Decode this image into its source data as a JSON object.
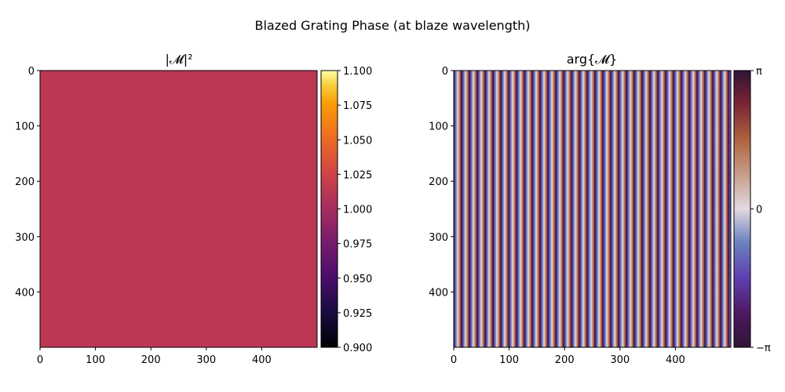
{
  "figure": {
    "suptitle": "Blazed Grating Phase (at blaze wavelength)"
  },
  "chart_data": [
    {
      "type": "heatmap",
      "title": "|𝓜|²",
      "xlabel": "",
      "ylabel": "",
      "x_ticks": [
        "0",
        "100",
        "200",
        "300",
        "400"
      ],
      "y_ticks": [
        "0",
        "100",
        "200",
        "300",
        "400"
      ],
      "xlim": [
        0,
        500
      ],
      "ylim": [
        500,
        0
      ],
      "grid": false,
      "constant_value": 1.0,
      "colormap": "inferno",
      "fill_color": "#bc3754",
      "colorbar": {
        "range": [
          0.9,
          1.1
        ],
        "ticks": [
          "1.100",
          "1.075",
          "1.050",
          "1.025",
          "1.000",
          "0.975",
          "0.950",
          "0.925",
          "0.900"
        ],
        "tick_values": [
          1.1,
          1.075,
          1.05,
          1.025,
          1.0,
          0.975,
          0.95,
          0.925,
          0.9
        ]
      }
    },
    {
      "type": "heatmap",
      "title": "arg{𝓜}",
      "xlabel": "",
      "ylabel": "",
      "x_ticks": [
        "0",
        "100",
        "200",
        "300",
        "400"
      ],
      "y_ticks": [
        "0",
        "100",
        "200",
        "300",
        "400"
      ],
      "xlim": [
        0,
        500
      ],
      "ylim": [
        500,
        0
      ],
      "grid": false,
      "pattern": "vertical stripes (phase ramp wrapping from −π to π)",
      "stripe_period_px": 10,
      "colormap": "twilight_shifted",
      "colorbar": {
        "range": [
          -3.14159,
          3.14159
        ],
        "ticks": [
          "π",
          "0",
          "−π"
        ],
        "tick_values": [
          3.14159,
          0,
          -3.14159
        ]
      }
    }
  ]
}
